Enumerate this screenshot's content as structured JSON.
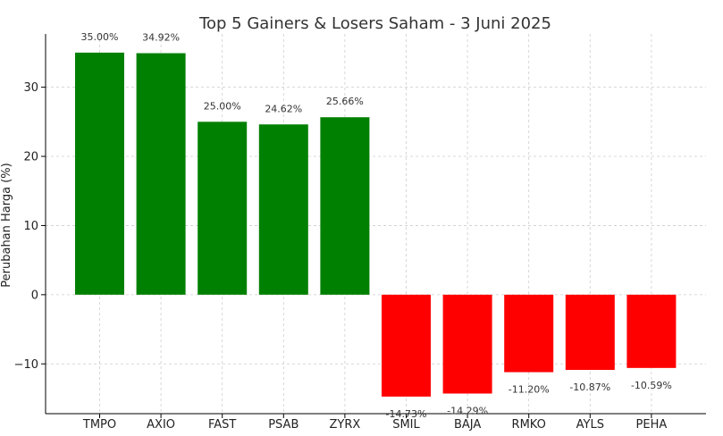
{
  "chart_data": {
    "type": "bar",
    "title": "Top 5 Gainers & Losers Saham - 3 Juni 2025",
    "xlabel": "",
    "ylabel": "Perubahan Harga (%)",
    "categories": [
      "TMPO",
      "AXIO",
      "FAST",
      "PSAB",
      "ZYRX",
      "SMIL",
      "BAJA",
      "RMKO",
      "AYLS",
      "PEHA"
    ],
    "values": [
      35.0,
      34.92,
      25.0,
      24.62,
      25.66,
      -14.73,
      -14.29,
      -11.2,
      -10.87,
      -10.59
    ],
    "data_labels": [
      "35.00%",
      "34.92%",
      "25.00%",
      "24.62%",
      "25.66%",
      "-14.73%",
      "-14.29%",
      "-11.20%",
      "-10.87%",
      "-10.59%"
    ],
    "yticks": [
      -10,
      0,
      10,
      20,
      30
    ],
    "ytick_labels": [
      "−10",
      "0",
      "10",
      "20",
      "30"
    ],
    "ylim": [
      -17.2,
      37.7
    ],
    "grid": true,
    "colors": {
      "positive": "#008000",
      "negative": "#ff0000",
      "grid": "#cccccc",
      "axis": "#000000"
    }
  }
}
